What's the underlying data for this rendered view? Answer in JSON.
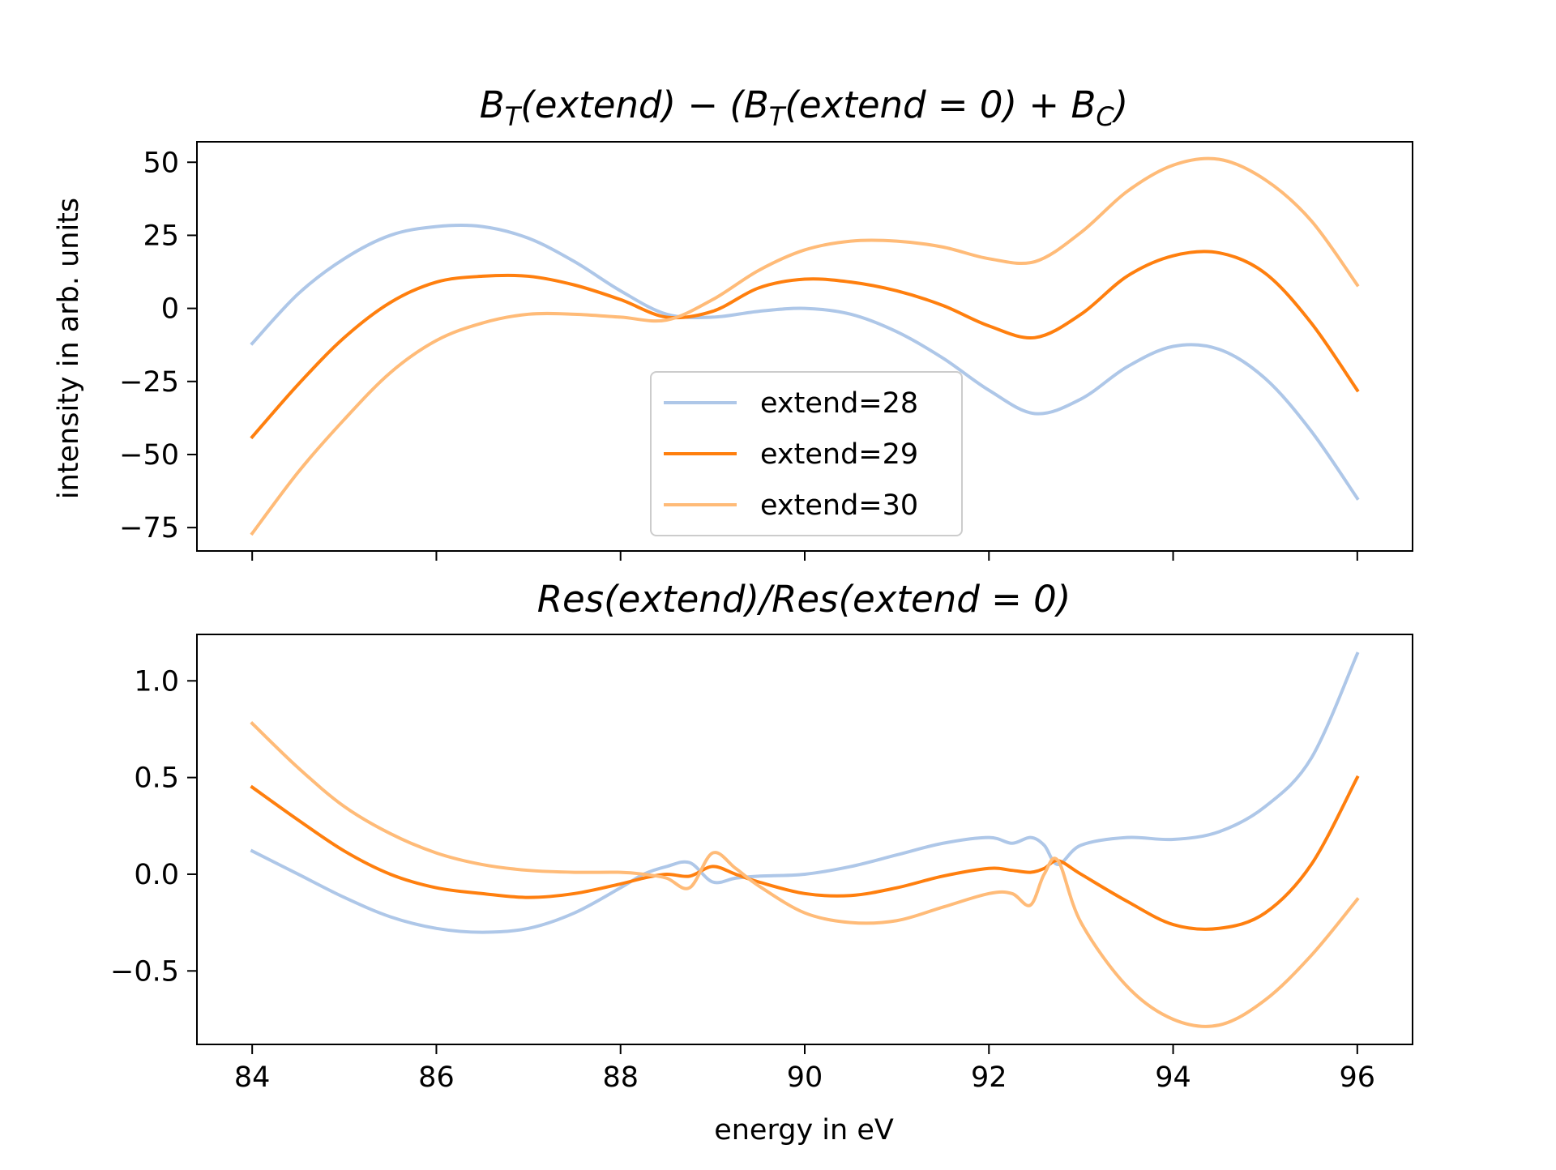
{
  "chart_data": [
    {
      "type": "line",
      "title": "B_T(extend) − (B_T(extend = 0) + B_C)",
      "title_parts": {
        "b_t_open": "B",
        "t_sub": "T",
        "extend_open": "(extend) − (",
        "b_t2": "B",
        "t_sub2": "T",
        "extend_zero": "(extend = 0) + ",
        "b_c": "B",
        "c_sub": "C",
        "close": ")"
      },
      "xlabel": "",
      "ylabel": "intensity in arb. units",
      "xlim": [
        83.4,
        96.6
      ],
      "ylim": [
        -83,
        57
      ],
      "x_ticks": [
        84,
        86,
        88,
        90,
        92,
        94,
        96
      ],
      "x_tick_labels_visible": false,
      "y_ticks": [
        50,
        25,
        0,
        -25,
        -50,
        -75
      ],
      "y_tick_labels": [
        "50",
        "25",
        "0",
        "−25",
        "−50",
        "−75"
      ],
      "grid": false,
      "legend": "lower center",
      "x": [
        84,
        84.5,
        85,
        85.5,
        86,
        86.5,
        87,
        87.5,
        88,
        88.5,
        89,
        89.5,
        90,
        90.5,
        91,
        91.5,
        92,
        92.5,
        93,
        93.5,
        94,
        94.5,
        95,
        95.5,
        96
      ],
      "series": [
        {
          "name": "extend=28",
          "color": "#aec7e8",
          "values": [
            -12,
            5,
            17,
            25,
            28,
            28,
            24,
            16,
            6,
            -2,
            -3,
            -1,
            0,
            -2,
            -8,
            -17,
            -28,
            -36,
            -31,
            -20,
            -13,
            -14,
            -24,
            -42,
            -65
          ]
        },
        {
          "name": "extend=29",
          "color": "#ff7f0e",
          "values": [
            -44,
            -26,
            -10,
            2,
            9,
            11,
            11,
            8,
            3,
            -3,
            -1,
            7,
            10,
            9,
            6,
            1,
            -6,
            -10,
            -2,
            11,
            18,
            19,
            12,
            -5,
            -28
          ]
        },
        {
          "name": "extend=30",
          "color": "#ffbb78",
          "values": [
            -77,
            -56,
            -38,
            -22,
            -11,
            -5,
            -2,
            -2,
            -3,
            -4,
            3,
            13,
            20,
            23,
            23,
            21,
            17,
            16,
            26,
            40,
            49,
            51,
            44,
            30,
            8
          ]
        }
      ]
    },
    {
      "type": "line",
      "title": "Res(extend)/Res(extend = 0)",
      "xlabel": "energy in eV",
      "ylabel": "",
      "xlim": [
        83.4,
        96.6
      ],
      "ylim": [
        -0.88,
        1.24
      ],
      "x_ticks": [
        84,
        86,
        88,
        90,
        92,
        94,
        96
      ],
      "x_tick_labels": [
        "84",
        "86",
        "88",
        "90",
        "92",
        "94",
        "96"
      ],
      "y_ticks": [
        1.0,
        0.5,
        0.0,
        -0.5
      ],
      "y_tick_labels": [
        "1.0",
        "0.5",
        "0.0",
        "−0.5"
      ],
      "grid": false,
      "x": [
        84,
        84.5,
        85,
        85.5,
        86,
        86.5,
        87,
        87.5,
        88,
        88.25,
        88.5,
        88.75,
        89,
        89.25,
        89.5,
        90,
        90.5,
        91,
        91.5,
        92,
        92.25,
        92.45,
        92.6,
        92.75,
        93,
        93.5,
        94,
        94.5,
        95,
        95.5,
        96
      ],
      "series": [
        {
          "name": "extend=28",
          "color": "#aec7e8",
          "values": [
            0.12,
            0.0,
            -0.12,
            -0.22,
            -0.28,
            -0.3,
            -0.28,
            -0.2,
            -0.07,
            0.0,
            0.04,
            0.06,
            -0.04,
            -0.02,
            -0.01,
            0.0,
            0.04,
            0.1,
            0.16,
            0.19,
            0.16,
            0.19,
            0.15,
            0.05,
            0.15,
            0.19,
            0.18,
            0.22,
            0.35,
            0.6,
            1.14
          ]
        },
        {
          "name": "extend=29",
          "color": "#ff7f0e",
          "values": [
            0.45,
            0.28,
            0.12,
            0.0,
            -0.07,
            -0.1,
            -0.12,
            -0.1,
            -0.05,
            -0.02,
            0.0,
            -0.01,
            0.04,
            0.0,
            -0.04,
            -0.1,
            -0.11,
            -0.07,
            -0.01,
            0.03,
            0.02,
            0.01,
            0.03,
            0.07,
            0.0,
            -0.14,
            -0.26,
            -0.28,
            -0.2,
            0.05,
            0.5
          ]
        },
        {
          "name": "extend=30",
          "color": "#ffbb78",
          "values": [
            0.78,
            0.55,
            0.35,
            0.21,
            0.11,
            0.05,
            0.02,
            0.01,
            0.01,
            0.0,
            -0.02,
            -0.07,
            0.11,
            0.03,
            -0.06,
            -0.2,
            -0.25,
            -0.24,
            -0.17,
            -0.1,
            -0.1,
            -0.16,
            0.0,
            0.07,
            -0.25,
            -0.58,
            -0.75,
            -0.78,
            -0.65,
            -0.42,
            -0.13
          ]
        }
      ]
    }
  ]
}
